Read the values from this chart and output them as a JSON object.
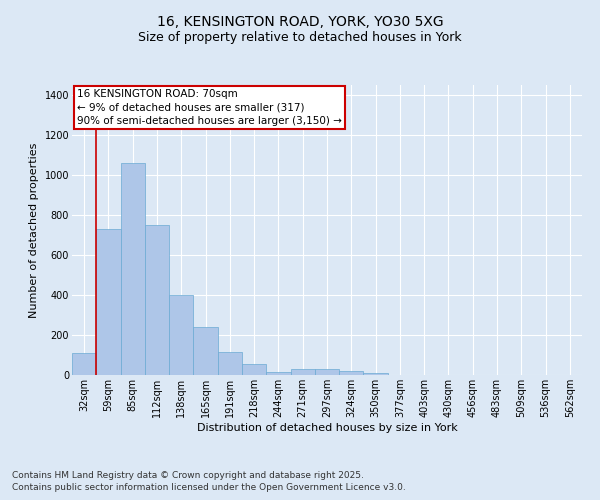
{
  "title_line1": "16, KENSINGTON ROAD, YORK, YO30 5XG",
  "title_line2": "Size of property relative to detached houses in York",
  "xlabel": "Distribution of detached houses by size in York",
  "ylabel": "Number of detached properties",
  "categories": [
    "32sqm",
    "59sqm",
    "85sqm",
    "112sqm",
    "138sqm",
    "165sqm",
    "191sqm",
    "218sqm",
    "244sqm",
    "271sqm",
    "297sqm",
    "324sqm",
    "350sqm",
    "377sqm",
    "403sqm",
    "430sqm",
    "456sqm",
    "483sqm",
    "509sqm",
    "536sqm",
    "562sqm"
  ],
  "values": [
    110,
    730,
    1060,
    750,
    400,
    240,
    115,
    55,
    15,
    28,
    28,
    18,
    10,
    0,
    0,
    0,
    0,
    0,
    0,
    0,
    0
  ],
  "bar_color": "#aec6e8",
  "bar_edge_color": "#6aaad4",
  "vline_color": "#cc0000",
  "vline_pos": 0.5,
  "annotation_title": "16 KENSINGTON ROAD: 70sqm",
  "annotation_line2": "← 9% of detached houses are smaller (317)",
  "annotation_line3": "90% of semi-detached houses are larger (3,150) →",
  "annotation_box_color": "#cc0000",
  "ylim": [
    0,
    1450
  ],
  "yticks": [
    0,
    200,
    400,
    600,
    800,
    1000,
    1200,
    1400
  ],
  "background_color": "#dce8f5",
  "grid_color": "#ffffff",
  "footer_line1": "Contains HM Land Registry data © Crown copyright and database right 2025.",
  "footer_line2": "Contains public sector information licensed under the Open Government Licence v3.0.",
  "title_fontsize": 10,
  "subtitle_fontsize": 9,
  "axis_label_fontsize": 8,
  "tick_fontsize": 7,
  "annotation_fontsize": 7.5,
  "footer_fontsize": 6.5
}
